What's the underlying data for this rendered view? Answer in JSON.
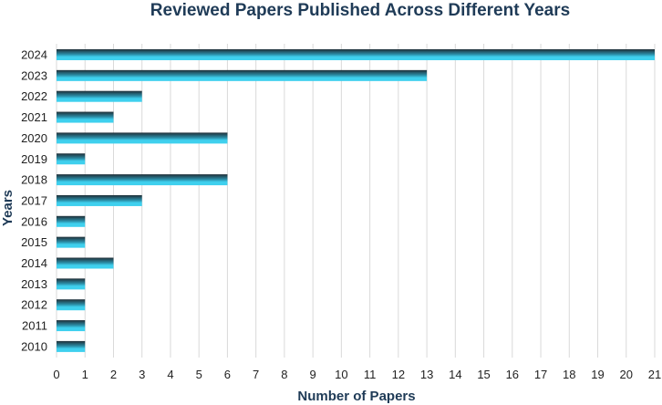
{
  "chart_data": {
    "type": "bar",
    "orientation": "horizontal",
    "title": "Reviewed Papers Published Across Different Years",
    "xlabel": "Number of Papers",
    "ylabel": "Years",
    "xlim": [
      0,
      21
    ],
    "x_ticks": [
      0,
      1,
      2,
      3,
      4,
      5,
      6,
      7,
      8,
      9,
      10,
      11,
      12,
      13,
      14,
      15,
      16,
      17,
      18,
      19,
      20,
      21
    ],
    "categories": [
      "2024",
      "2023",
      "2022",
      "2021",
      "2020",
      "2019",
      "2018",
      "2017",
      "2016",
      "2015",
      "2014",
      "2013",
      "2012",
      "2011",
      "2010"
    ],
    "values": [
      21,
      13,
      3,
      2,
      6,
      1,
      6,
      3,
      1,
      1,
      2,
      1,
      1,
      1,
      1
    ],
    "grid": "vertical",
    "colors": {
      "bar_top": "#1f2d36",
      "bar_bottom": "#3fd0ee",
      "title": "#1f3b57"
    }
  }
}
